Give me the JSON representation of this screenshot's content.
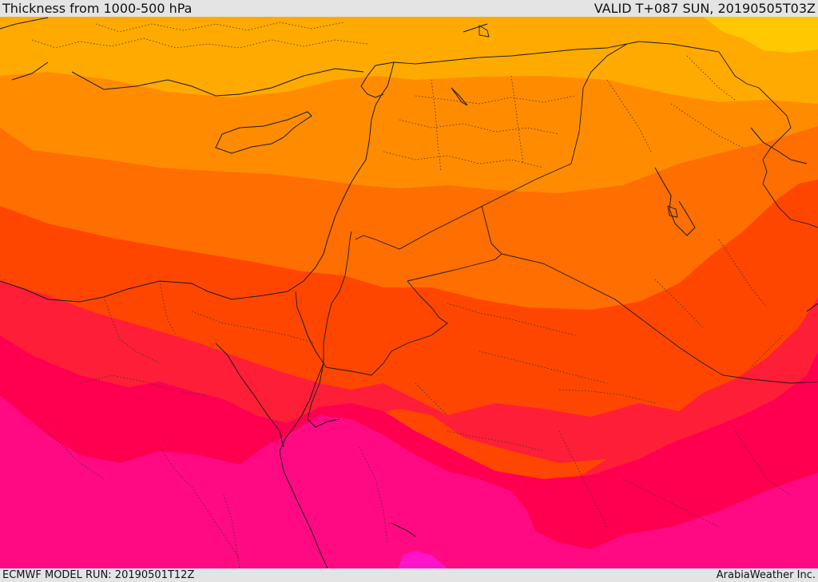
{
  "header": {
    "title": "Thickness from 1000-500 hPa",
    "valid_time": "VALID T+087 SUN, 20190505T03Z"
  },
  "footer": {
    "model_run": "ECMWF MODEL RUN: 20190501T12Z",
    "credit": "ArabiaWeather Inc."
  },
  "map": {
    "field": "thickness-1000-500hPa",
    "color_bands": [
      "#ffc800",
      "#ffaa00",
      "#ff8c00",
      "#ff6e00",
      "#ff4600",
      "#ff1e37",
      "#ff0050",
      "#ff0a82",
      "#ff14c8"
    ]
  }
}
